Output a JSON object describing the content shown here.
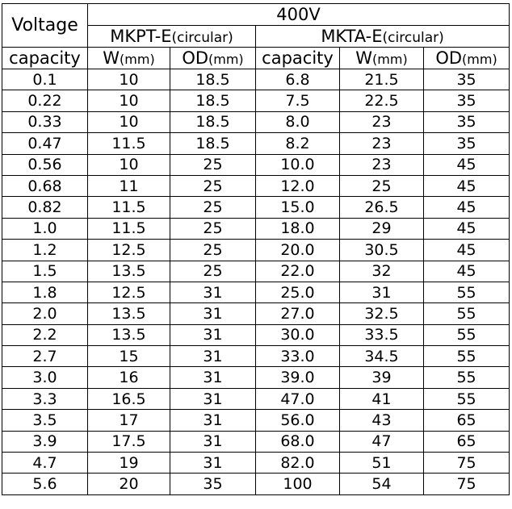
{
  "table": {
    "corner_label": "Voltage",
    "capacity_label": "capacity",
    "voltage_label": "400V",
    "group1": {
      "name": "MKPT-E",
      "suffix": "(circular)"
    },
    "group2": {
      "name": "MKTA-E",
      "suffix": "(circular)"
    },
    "sub_headers": {
      "w": "W",
      "od": "OD",
      "unit": "(mm)",
      "capacity": "capacity"
    },
    "rows": [
      [
        "0.1",
        "10",
        "18.5",
        "6.8",
        "21.5",
        "35"
      ],
      [
        "0.22",
        "10",
        "18.5",
        "7.5",
        "22.5",
        "35"
      ],
      [
        "0.33",
        "10",
        "18.5",
        "8.0",
        "23",
        "35"
      ],
      [
        "0.47",
        "11.5",
        "18.5",
        "8.2",
        "23",
        "35"
      ],
      [
        "0.56",
        "10",
        "25",
        "10.0",
        "23",
        "45"
      ],
      [
        "0.68",
        "11",
        "25",
        "12.0",
        "25",
        "45"
      ],
      [
        "0.82",
        "11.5",
        "25",
        "15.0",
        "26.5",
        "45"
      ],
      [
        "1.0",
        "11.5",
        "25",
        "18.0",
        "29",
        "45"
      ],
      [
        "1.2",
        "12.5",
        "25",
        "20.0",
        "30.5",
        "45"
      ],
      [
        "1.5",
        "13.5",
        "25",
        "22.0",
        "32",
        "45"
      ],
      [
        "1.8",
        "12.5",
        "31",
        "25.0",
        "31",
        "55"
      ],
      [
        "2.0",
        "13.5",
        "31",
        "27.0",
        "32.5",
        "55"
      ],
      [
        "2.2",
        "13.5",
        "31",
        "30.0",
        "33.5",
        "55"
      ],
      [
        "2.7",
        "15",
        "31",
        "33.0",
        "34.5",
        "55"
      ],
      [
        "3.0",
        "16",
        "31",
        "39.0",
        "39",
        "55"
      ],
      [
        "3.3",
        "16.5",
        "31",
        "47.0",
        "41",
        "55"
      ],
      [
        "3.5",
        "17",
        "31",
        "56.0",
        "43",
        "65"
      ],
      [
        "3.9",
        "17.5",
        "31",
        "68.0",
        "47",
        "65"
      ],
      [
        "4.7",
        "19",
        "31",
        "82.0",
        "51",
        "75"
      ],
      [
        "5.6",
        "20",
        "35",
        "100",
        "54",
        "75"
      ]
    ]
  }
}
